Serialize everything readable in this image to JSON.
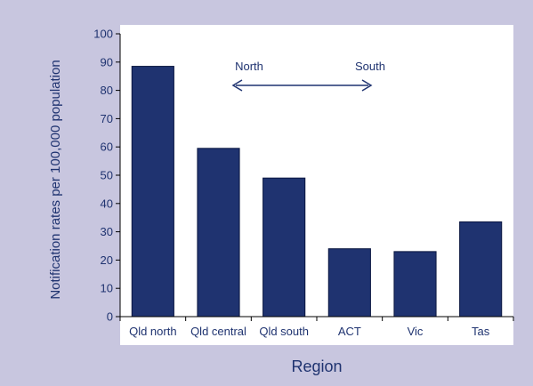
{
  "chart_data": {
    "type": "bar",
    "categories": [
      "Qld north",
      "Qld central",
      "Qld south",
      "ACT",
      "Vic",
      "Tas"
    ],
    "values": [
      88.5,
      59.5,
      49,
      24,
      23,
      33.5
    ],
    "title": "",
    "xlabel": "Region",
    "ylabel": "Notification rates per 100,000 population",
    "ylim": [
      0,
      100
    ],
    "yticks": [
      "0",
      "10",
      "20",
      "30",
      "40",
      "50",
      "60",
      "70",
      "80",
      "90",
      "100"
    ],
    "grid": false,
    "annotation": {
      "left_label": "North",
      "right_label": "South",
      "arrow": "double-headed"
    },
    "colors": {
      "bar": "#1f3370",
      "bar_edge": "#0a1640",
      "frame_background": "#c8c6df",
      "plot_background": "#ffffff",
      "text": "#1f3370",
      "axis": "#000000"
    }
  }
}
